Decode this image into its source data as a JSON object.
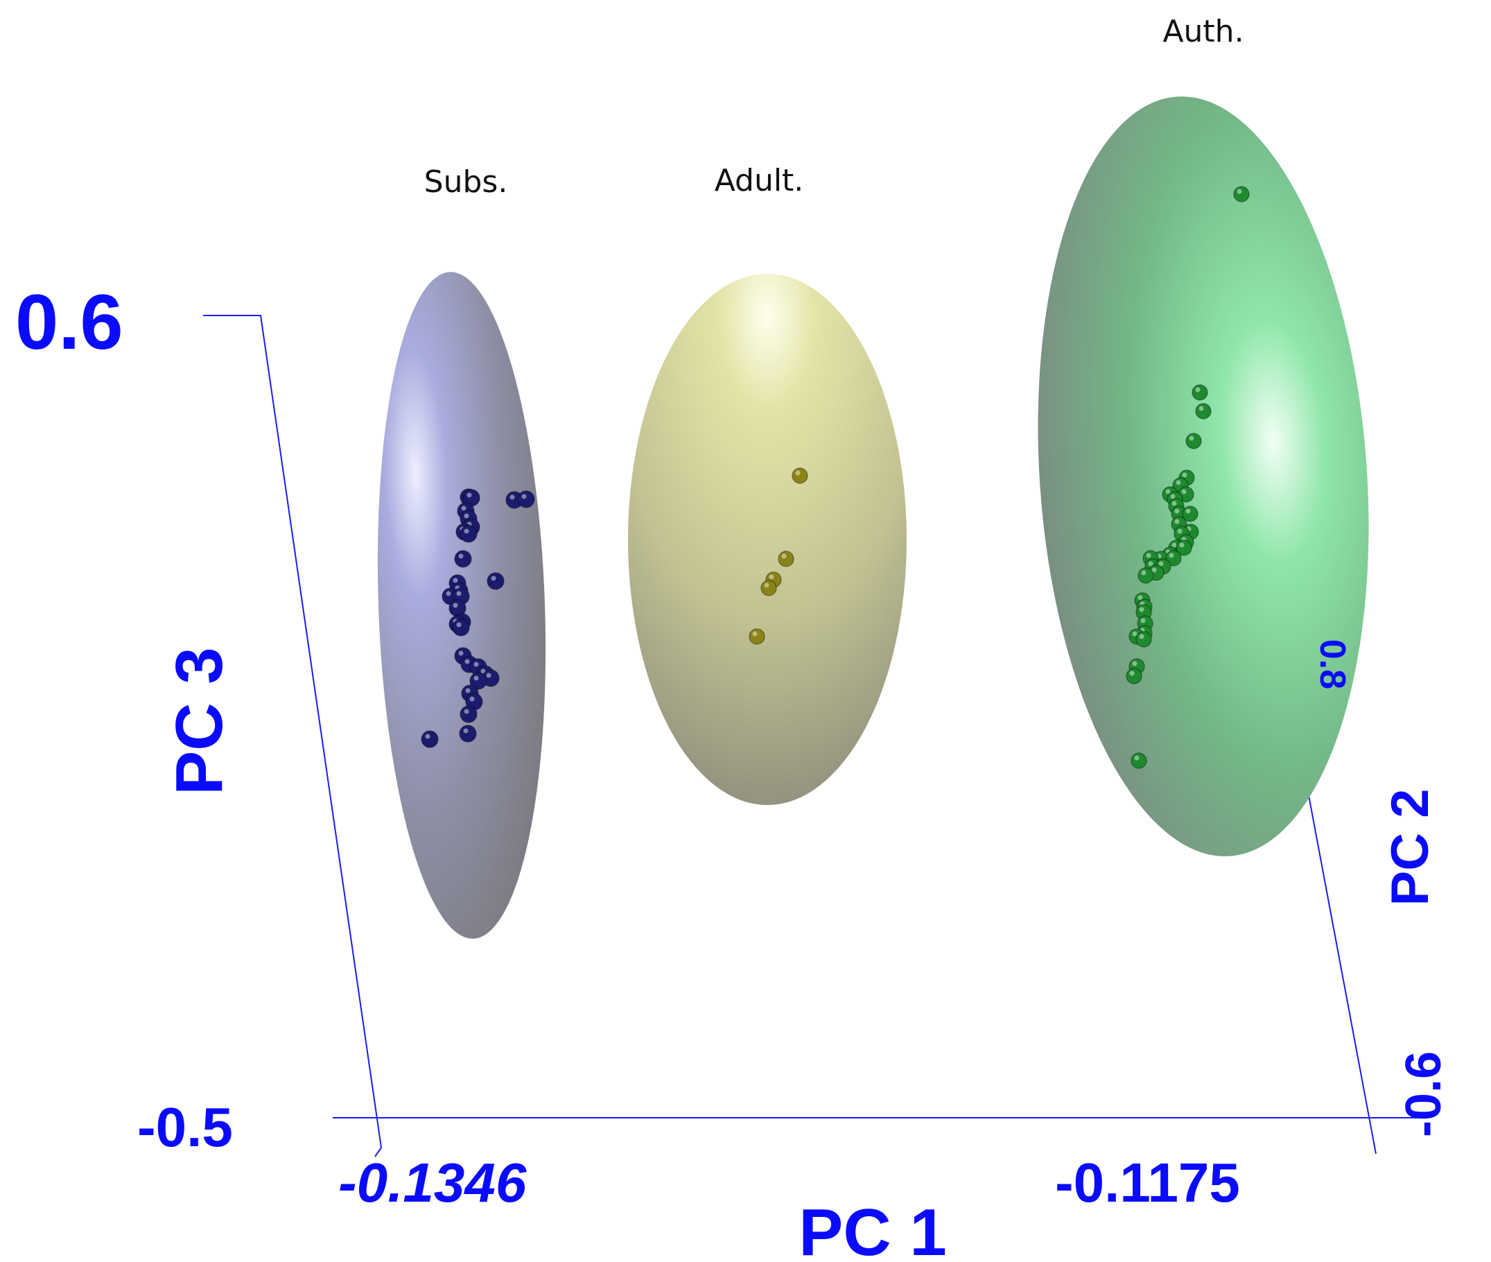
{
  "chart_data": {
    "type": "scatter",
    "title": "",
    "axes": {
      "x": {
        "label": "PC 1",
        "ticks": [
          "-0.1346",
          "-0.1175"
        ]
      },
      "y": {
        "label": "PC 2",
        "ticks": [
          "0.8",
          "-0.6"
        ]
      },
      "z": {
        "label": "PC 3",
        "ticks": [
          "0.6",
          "-0.5"
        ]
      }
    },
    "series": [
      {
        "name": "Subs.",
        "color": "#1c1c6e",
        "ellipse_color": "#9ea0cf"
      },
      {
        "name": "Adult.",
        "color": "#8a8418",
        "ellipse_color": "#dcdca0"
      },
      {
        "name": "Auth.",
        "color": "#1e8a2e",
        "ellipse_color": "#7ecf96"
      }
    ],
    "grid": false
  }
}
